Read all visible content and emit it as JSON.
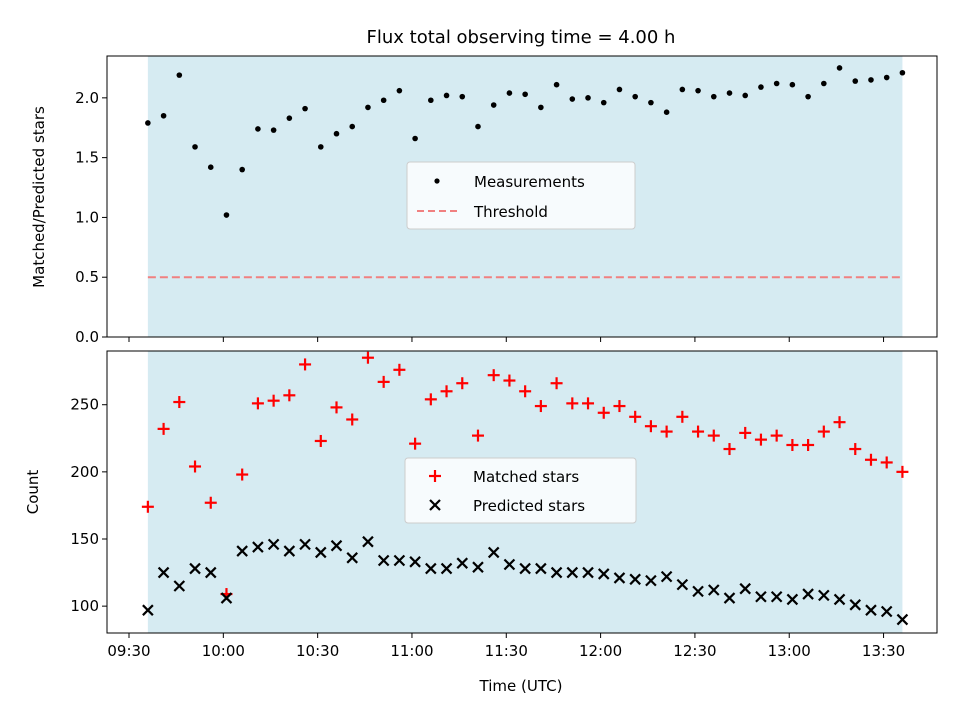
{
  "title": "Flux total observing time = 4.00 h",
  "chart_data": [
    {
      "type": "scatter",
      "panel": "top",
      "ylabel": "Matched/Predicted stars",
      "xlabel": "",
      "ylim": [
        0,
        2.35
      ],
      "yticks": [
        "0.0",
        "0.5",
        "1.0",
        "1.5",
        "2.0"
      ],
      "xlim": [
        "09:23",
        "13:47"
      ],
      "xticks": [
        "09:30",
        "10:00",
        "10:30",
        "11:00",
        "11:30",
        "12:00",
        "12:30",
        "13:00",
        "13:30"
      ],
      "grid": false,
      "legend_position": "center",
      "shaded_interval": [
        "09:36",
        "13:36"
      ],
      "shade_color": "#add8e6",
      "series": [
        {
          "name": "Measurements",
          "kind": "points",
          "color": "#000000",
          "x": [
            "09:36",
            "09:41",
            "09:46",
            "09:51",
            "09:56",
            "10:01",
            "10:06",
            "10:11",
            "10:16",
            "10:21",
            "10:26",
            "10:31",
            "10:36",
            "10:41",
            "10:46",
            "10:51",
            "10:56",
            "11:01",
            "11:06",
            "11:11",
            "11:16",
            "11:21",
            "11:26",
            "11:31",
            "11:36",
            "11:41",
            "11:46",
            "11:51",
            "11:56",
            "12:01",
            "12:06",
            "12:11",
            "12:16",
            "12:21",
            "12:26",
            "12:31",
            "12:36",
            "12:41",
            "12:46",
            "12:51",
            "12:56",
            "13:01",
            "13:06",
            "13:11",
            "13:16",
            "13:21",
            "13:26",
            "13:31",
            "13:36"
          ],
          "y": [
            1.79,
            1.85,
            2.19,
            1.59,
            1.42,
            1.02,
            1.4,
            1.74,
            1.73,
            1.83,
            1.91,
            1.59,
            1.7,
            1.76,
            1.92,
            1.98,
            2.06,
            1.66,
            1.98,
            2.02,
            2.01,
            1.76,
            1.94,
            2.04,
            2.03,
            1.92,
            2.11,
            1.99,
            2.0,
            1.96,
            2.07,
            2.01,
            1.96,
            1.88,
            2.07,
            2.06,
            2.01,
            2.04,
            2.02,
            2.09,
            2.12,
            2.11,
            2.01,
            2.12,
            2.25,
            2.14,
            2.15,
            2.17,
            2.21
          ]
        },
        {
          "name": "Threshold",
          "kind": "hline",
          "color": "#f08080",
          "style": "dashed",
          "y": 0.5
        }
      ]
    },
    {
      "type": "scatter",
      "panel": "bottom",
      "ylabel": "Count",
      "xlabel": "Time (UTC)",
      "ylim": [
        80,
        290
      ],
      "yticks": [
        "100",
        "150",
        "200",
        "250"
      ],
      "xlim": [
        "09:23",
        "13:47"
      ],
      "xticks": [
        "09:30",
        "10:00",
        "10:30",
        "11:00",
        "11:30",
        "12:00",
        "12:30",
        "13:00",
        "13:30"
      ],
      "grid": false,
      "legend_position": "center",
      "shaded_interval": [
        "09:36",
        "13:36"
      ],
      "shade_color": "#add8e6",
      "series": [
        {
          "name": "Matched stars",
          "marker": "plus",
          "color": "#ff0000",
          "x": [
            "09:36",
            "09:41",
            "09:46",
            "09:51",
            "09:56",
            "10:01",
            "10:06",
            "10:11",
            "10:16",
            "10:21",
            "10:26",
            "10:31",
            "10:36",
            "10:41",
            "10:46",
            "10:51",
            "10:56",
            "11:01",
            "11:06",
            "11:11",
            "11:16",
            "11:21",
            "11:26",
            "11:31",
            "11:36",
            "11:41",
            "11:46",
            "11:51",
            "11:56",
            "12:01",
            "12:06",
            "12:11",
            "12:16",
            "12:21",
            "12:26",
            "12:31",
            "12:36",
            "12:41",
            "12:46",
            "12:51",
            "12:56",
            "13:01",
            "13:06",
            "13:11",
            "13:16",
            "13:21",
            "13:26",
            "13:31",
            "13:36"
          ],
          "y": [
            174,
            232,
            252,
            204,
            177,
            109,
            198,
            251,
            253,
            257,
            280,
            223,
            248,
            239,
            285,
            267,
            276,
            221,
            254,
            260,
            266,
            227,
            272,
            268,
            260,
            249,
            266,
            251,
            251,
            244,
            249,
            241,
            234,
            230,
            241,
            230,
            227,
            217,
            229,
            224,
            227,
            220,
            220,
            230,
            237,
            217,
            209,
            207,
            200
          ]
        },
        {
          "name": "Predicted stars",
          "marker": "x",
          "color": "#000000",
          "x": [
            "09:36",
            "09:41",
            "09:46",
            "09:51",
            "09:56",
            "10:01",
            "10:06",
            "10:11",
            "10:16",
            "10:21",
            "10:26",
            "10:31",
            "10:36",
            "10:41",
            "10:46",
            "10:51",
            "10:56",
            "11:01",
            "11:06",
            "11:11",
            "11:16",
            "11:21",
            "11:26",
            "11:31",
            "11:36",
            "11:41",
            "11:46",
            "11:51",
            "11:56",
            "12:01",
            "12:06",
            "12:11",
            "12:16",
            "12:21",
            "12:26",
            "12:31",
            "12:36",
            "12:41",
            "12:46",
            "12:51",
            "12:56",
            "13:01",
            "13:06",
            "13:11",
            "13:16",
            "13:21",
            "13:26",
            "13:31",
            "13:36"
          ],
          "y": [
            97,
            125,
            115,
            128,
            125,
            106,
            141,
            144,
            146,
            141,
            146,
            140,
            145,
            136,
            148,
            134,
            134,
            133,
            128,
            128,
            132,
            129,
            140,
            131,
            128,
            128,
            125,
            125,
            125,
            124,
            121,
            120,
            119,
            122,
            116,
            111,
            112,
            106,
            113,
            107,
            107,
            105,
            109,
            108,
            105,
            101,
            97,
            96,
            90
          ]
        }
      ]
    }
  ]
}
